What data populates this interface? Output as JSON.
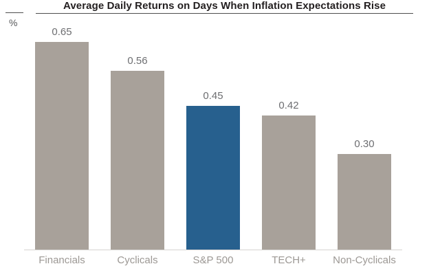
{
  "chart": {
    "title": "Average Daily Returns on Days When Inflation Expectations Rise",
    "unit_label": "%"
  },
  "chart_data": {
    "type": "bar",
    "title": "Average Daily Returns on Days When Inflation Expectations Rise",
    "xlabel": "",
    "ylabel": "%",
    "categories": [
      "Financials",
      "Cyclicals",
      "S&P 500",
      "TECH+",
      "Non-Cyclicals"
    ],
    "values": [
      0.65,
      0.56,
      0.45,
      0.42,
      0.3
    ],
    "value_labels": [
      "0.65",
      "0.56",
      "0.45",
      "0.42",
      "0.30"
    ],
    "highlight_index": 2,
    "colors": {
      "bar": "#a8a19a",
      "highlight_bar": "#27608e",
      "title_text": "#231f20",
      "rule": "#4d4d4d",
      "value_label": "#6d6e71",
      "category_label": "#9c9894",
      "baseline": "#d6d3d0"
    },
    "ylim": [
      0,
      0.7
    ],
    "grid": false,
    "legend": false,
    "data_labels_shown": true
  }
}
